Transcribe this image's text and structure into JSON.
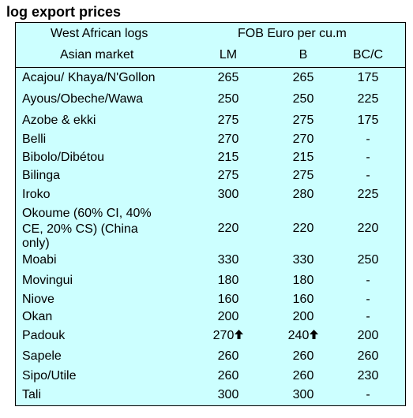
{
  "title": "log export prices",
  "header": {
    "region": "West African logs",
    "market": "Asian market",
    "currency": "FOB Euro per cu.m",
    "col_lm": "LM",
    "col_b": "B",
    "col_bcc": "BC/C"
  },
  "rows": [
    {
      "name": "Acajou/ Khaya/N'Gollon",
      "lm": "265",
      "b": "265",
      "bcc": "175"
    },
    {
      "name": "Ayous/Obeche/Wawa",
      "lm": "250",
      "b": "250",
      "bcc": "225"
    },
    {
      "name": "Azobe & ekki",
      "lm": "275",
      "b": "275",
      "bcc": "175"
    },
    {
      "name": "Belli",
      "lm": "270",
      "b": "270",
      "bcc": "-"
    },
    {
      "name": "Bibolo/Dibétou",
      "lm": "215",
      "b": "215",
      "bcc": "-"
    },
    {
      "name": "Bilinga",
      "lm": "275",
      "b": "275",
      "bcc": "-"
    },
    {
      "name": "Iroko",
      "lm": "300",
      "b": "280",
      "bcc": "225"
    },
    {
      "name": "Okoume (60% CI, 40%",
      "name2": "CE, 20% CS) (China",
      "name3": "only)",
      "lm": "220",
      "b": "220",
      "bcc": "220"
    },
    {
      "name": "Moabi",
      "lm": "330",
      "b": "330",
      "bcc": "250"
    },
    {
      "name": "Movingui",
      "lm": "180",
      "b": "180",
      "bcc": "-"
    },
    {
      "name": "Niove",
      "lm": "160",
      "b": "160",
      "bcc": "-"
    },
    {
      "name": "Okan",
      "lm": "200",
      "b": "200",
      "bcc": "-"
    },
    {
      "name": "Padouk",
      "lm": "270",
      "lm_icon": "up-arrow-icon",
      "b": "240",
      "b_icon": "up-arrow-icon",
      "bcc": "200"
    },
    {
      "name": "Sapele",
      "lm": "260",
      "b": "260",
      "bcc": "260"
    },
    {
      "name": "Sipo/Utile",
      "lm": "260",
      "b": "260",
      "bcc": "230"
    },
    {
      "name": "Tali",
      "lm": "300",
      "b": "300",
      "bcc": "-"
    }
  ],
  "colors": {
    "table_background": "#ccffff",
    "border": "#000000"
  }
}
